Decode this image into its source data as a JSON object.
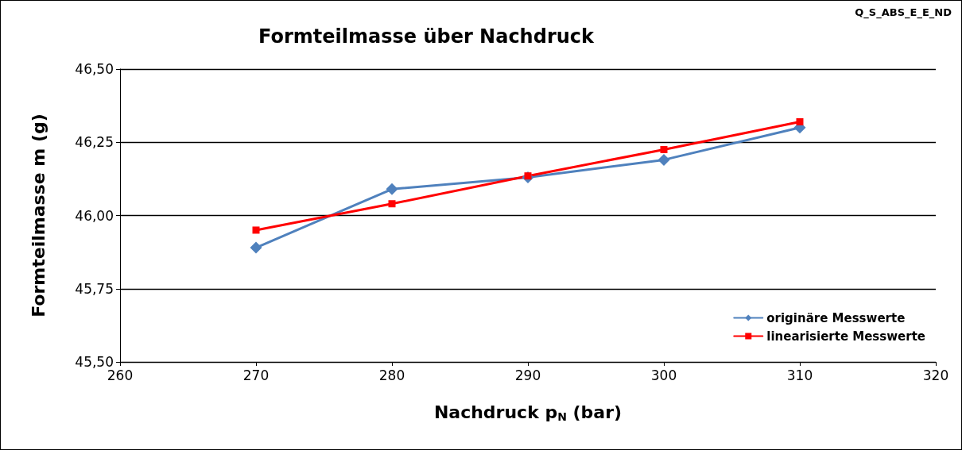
{
  "chart_data": {
    "type": "line",
    "title": "Formteilmasse über Nachdruck",
    "xlabel": "Nachdruck p$_{N}$ (bar)",
    "ylabel": "Formteilmasse m (g)",
    "annotations": [
      "Q_S_ABS_E_E_ND"
    ],
    "x": [
      270,
      280,
      290,
      300,
      310
    ],
    "series": [
      {
        "name": "originäre Messwerte",
        "color": "#4f81bd",
        "marker": "diamond",
        "values": [
          45.89,
          46.09,
          46.13,
          46.19,
          46.3
        ]
      },
      {
        "name": "linearisierte Messwerte",
        "color": "#ff0000",
        "marker": "square",
        "values": [
          45.95,
          46.04,
          46.135,
          46.225,
          46.32
        ]
      }
    ],
    "xlim": [
      260,
      320
    ],
    "xticks": [
      260,
      270,
      280,
      290,
      300,
      310,
      320
    ],
    "ylim": [
      45.5,
      46.5
    ],
    "yticks": [
      {
        "value": 45.5,
        "label": "45,50"
      },
      {
        "value": 45.75,
        "label": "45,75"
      },
      {
        "value": 46,
        "label": "46,00"
      },
      {
        "value": 46.25,
        "label": "46,25"
      },
      {
        "value": 46.5,
        "label": "46,50"
      }
    ],
    "grid": "y",
    "legend": "bottom right",
    "line_style": "solid"
  }
}
